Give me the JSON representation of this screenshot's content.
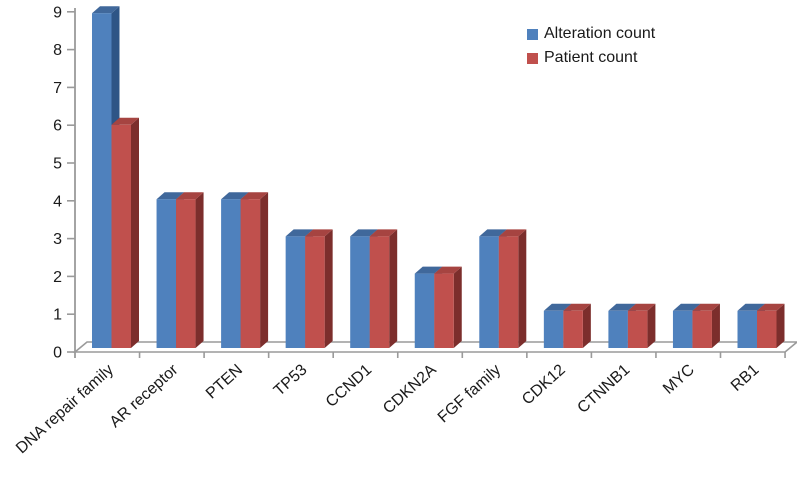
{
  "chart_data": {
    "type": "bar",
    "style": "3d-clustered-column",
    "title": "",
    "xlabel": "",
    "ylabel": "",
    "categories": [
      "DNA repair family",
      "AR receptor",
      "PTEN",
      "TP53",
      "CCND1",
      "CDKN2A",
      "FGF family",
      "CDK12",
      "CTNNB1",
      "MYC",
      "RB1"
    ],
    "series": [
      {
        "name": "Alteration count",
        "values": [
          9,
          4,
          4,
          3,
          3,
          2,
          3,
          1,
          1,
          1,
          1
        ],
        "color": "#4F81BD",
        "color_top": "#40689B",
        "color_side": "#2E5586"
      },
      {
        "name": "Patient count",
        "values": [
          6,
          4,
          4,
          3,
          3,
          2,
          3,
          1,
          1,
          1,
          1
        ],
        "color": "#C0504D",
        "color_top": "#A64441",
        "color_side": "#7C2E2C"
      }
    ],
    "ylim": [
      0,
      9
    ],
    "y_ticks": [
      0,
      1,
      2,
      3,
      4,
      5,
      6,
      7,
      8,
      9
    ],
    "grid": false,
    "legend_position": "top-right",
    "axis_color": "#9A9A9A",
    "label_color": "#1A1A1A",
    "background_color": "#FFFFFF"
  }
}
